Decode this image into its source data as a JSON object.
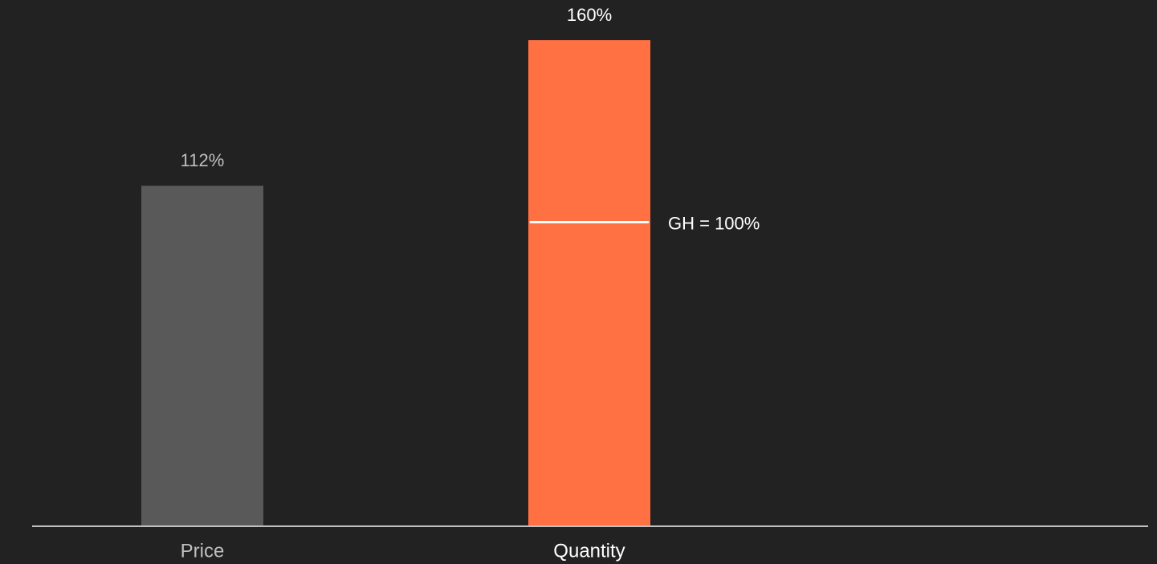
{
  "chart_data": {
    "type": "bar",
    "categories": [
      "Price",
      "Quantity"
    ],
    "values": [
      112,
      160
    ],
    "value_labels": [
      "112%",
      "160%"
    ],
    "colors": [
      "#595959",
      "#ff7043"
    ],
    "ylim": [
      0,
      160
    ],
    "annotations": [
      {
        "text": "GH = 100%",
        "value": 100,
        "category": "Quantity"
      }
    ]
  }
}
